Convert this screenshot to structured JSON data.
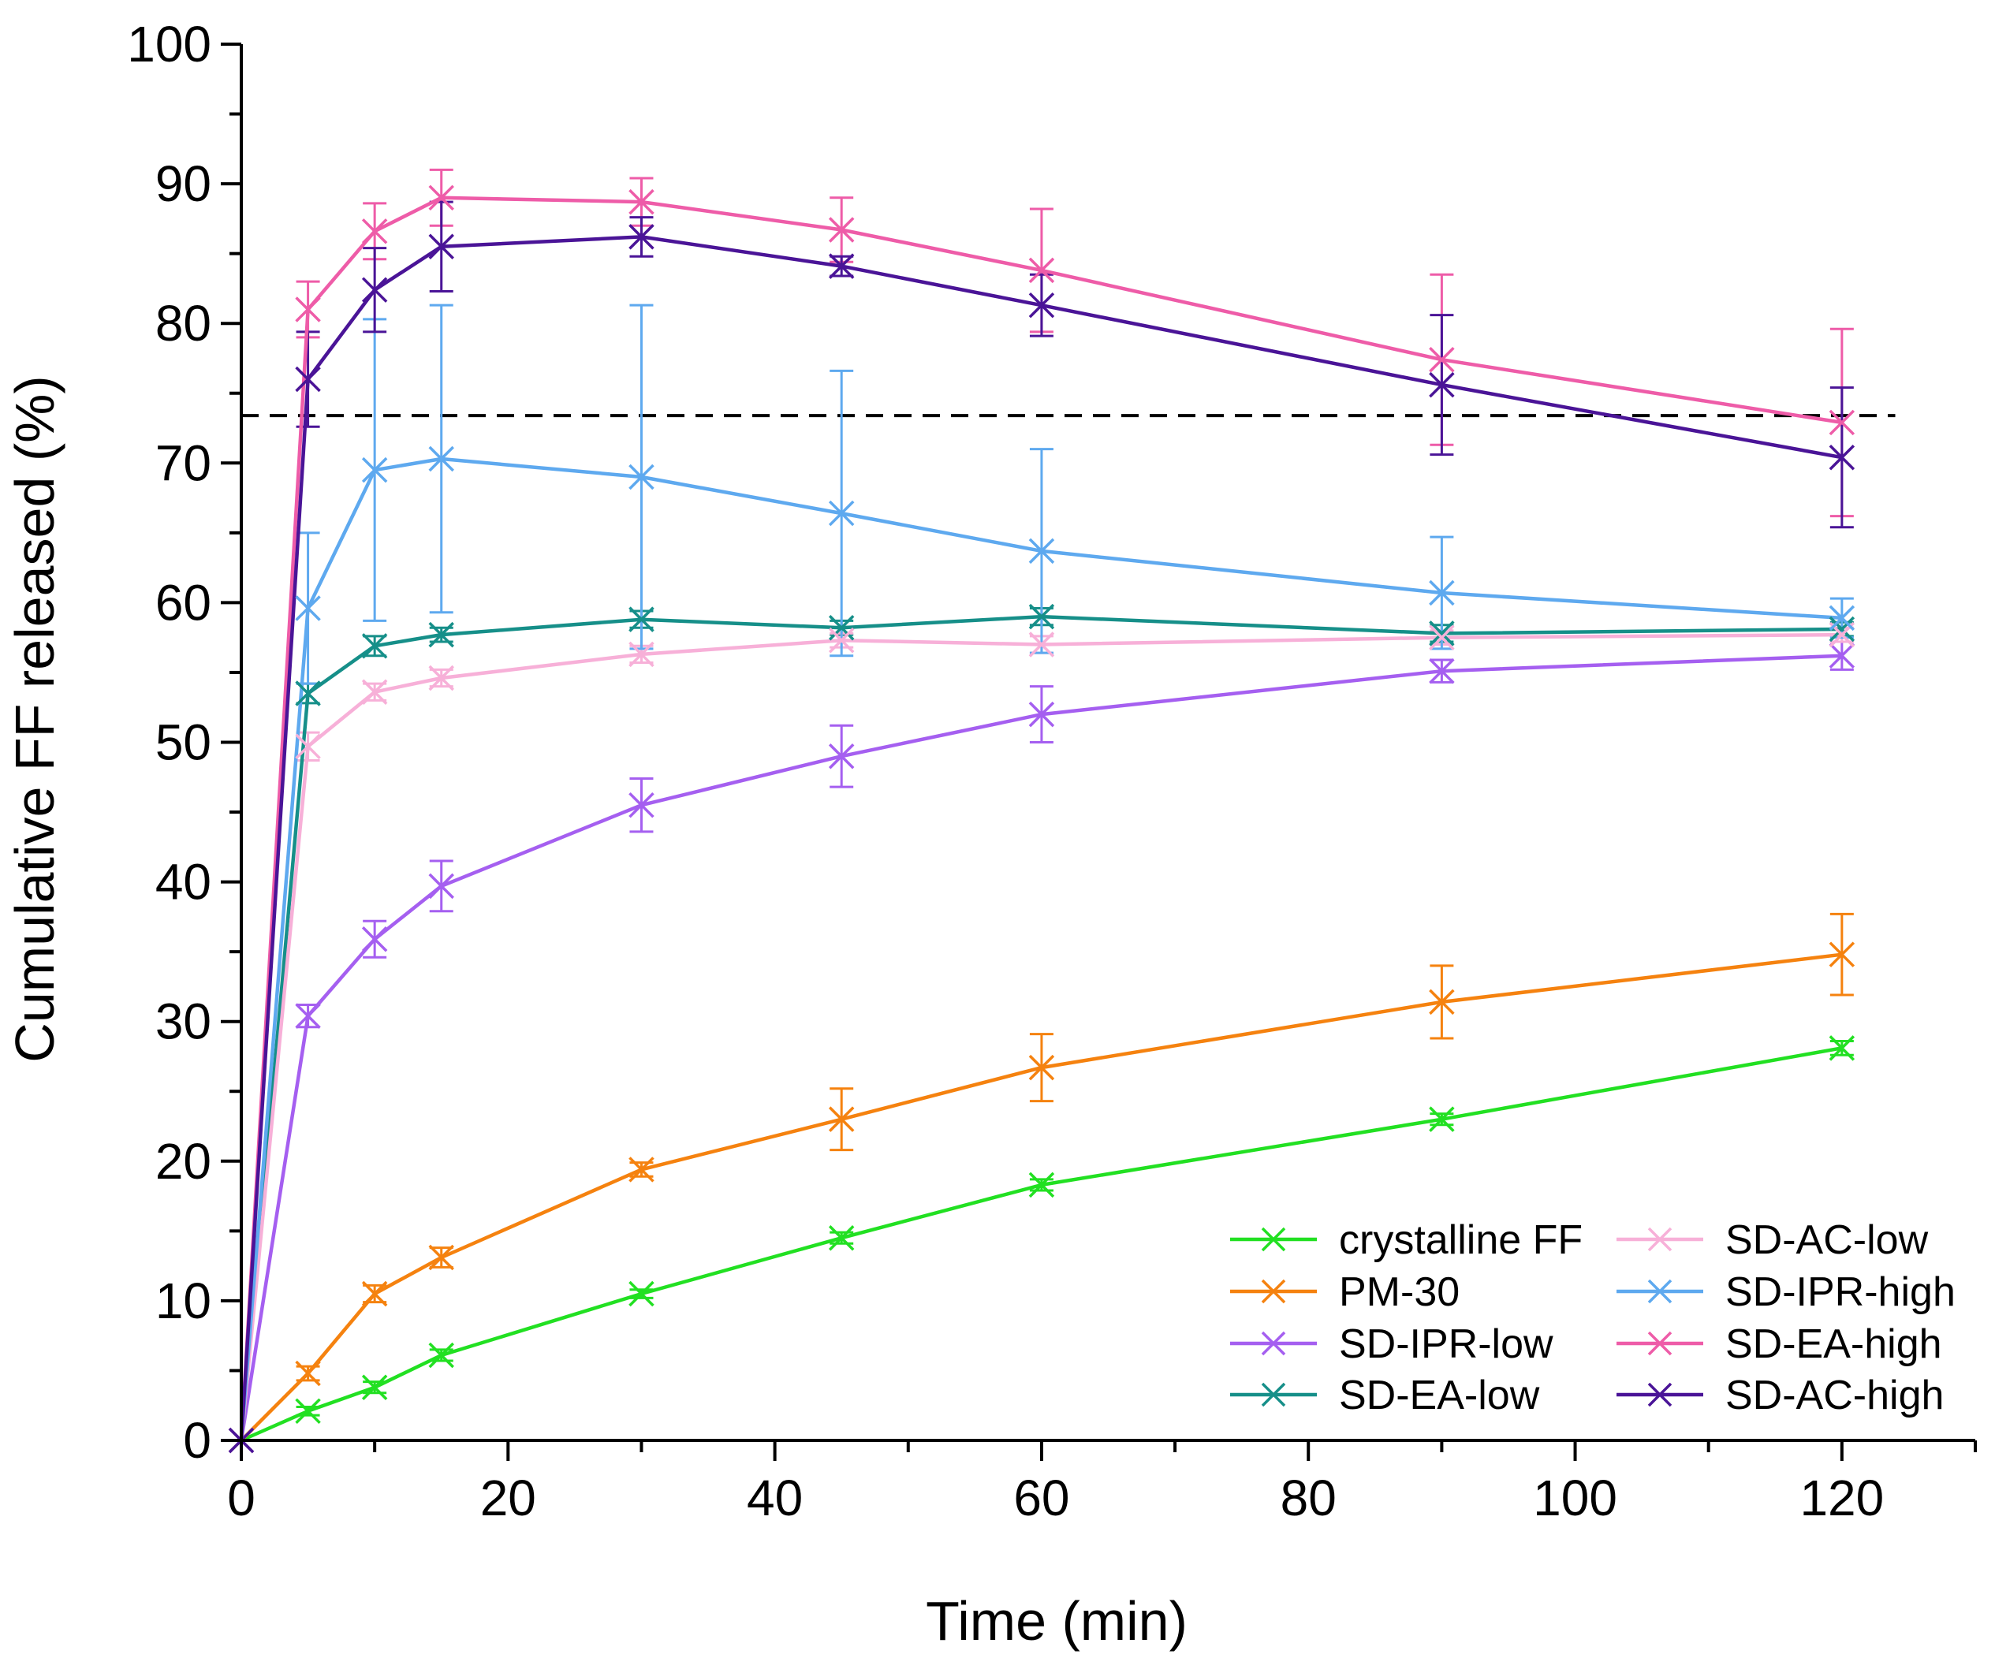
{
  "chart_data": {
    "type": "line",
    "title": "",
    "xlabel": "Time (min)",
    "ylabel": "Cumulative FF released (%)",
    "xlim": [
      0,
      130
    ],
    "ylim": [
      0,
      100
    ],
    "x_ticks": [
      0,
      20,
      40,
      60,
      80,
      100,
      120
    ],
    "y_ticks": [
      0,
      10,
      20,
      30,
      40,
      50,
      60,
      70,
      80,
      90,
      100
    ],
    "grid": false,
    "legend_position": "bottom-right",
    "reference_line": {
      "y": 73.4,
      "style": "dashed",
      "color": "#000000"
    },
    "x": [
      0,
      5,
      10,
      15,
      30,
      45,
      60,
      90,
      120
    ],
    "series": [
      {
        "name": "crystalline FF",
        "color": "#22e022",
        "values": [
          0,
          2.1,
          3.8,
          6.1,
          10.5,
          14.5,
          18.3,
          23.0,
          28.1
        ],
        "errors": [
          0,
          0.3,
          0.4,
          0.4,
          0.3,
          0.4,
          0.4,
          0.4,
          0.5
        ]
      },
      {
        "name": "PM-30",
        "color": "#f5820f",
        "values": [
          0,
          4.8,
          10.5,
          13.1,
          19.4,
          23.0,
          26.7,
          31.4,
          34.8
        ],
        "errors": [
          0,
          0.5,
          0.6,
          0.7,
          0.5,
          2.2,
          2.4,
          2.6,
          2.9
        ]
      },
      {
        "name": "SD-IPR-low",
        "color": "#a55ff0",
        "values": [
          0,
          30.4,
          35.9,
          39.7,
          45.5,
          49.0,
          52.0,
          55.1,
          56.2
        ],
        "errors": [
          0,
          0.8,
          1.3,
          1.8,
          1.9,
          2.2,
          2.0,
          0.8,
          1.0
        ]
      },
      {
        "name": "SD-EA-low",
        "color": "#168f89",
        "values": [
          0,
          53.5,
          56.9,
          57.7,
          58.8,
          58.2,
          59.0,
          57.8,
          58.1
        ],
        "errors": [
          0,
          0.7,
          0.7,
          0.5,
          0.6,
          0.5,
          0.6,
          0.6,
          0.5
        ]
      },
      {
        "name": "SD-AC-low",
        "color": "#f7b0d8",
        "values": [
          0,
          49.7,
          53.6,
          54.6,
          56.3,
          57.3,
          57.0,
          57.5,
          57.7
        ],
        "errors": [
          0,
          1.0,
          0.6,
          0.6,
          0.6,
          0.5,
          0.6,
          0.5,
          0.5
        ]
      },
      {
        "name": "SD-IPR-high",
        "color": "#5ea9ef",
        "values": [
          0,
          59.6,
          69.5,
          70.3,
          69.0,
          66.4,
          63.7,
          60.7,
          58.9
        ],
        "errors": [
          0,
          5.4,
          10.8,
          11.0,
          12.3,
          10.2,
          7.3,
          4.0,
          1.4
        ]
      },
      {
        "name": "SD-EA-high",
        "color": "#ee5ca8",
        "values": [
          0,
          81.0,
          86.6,
          89.0,
          88.7,
          86.7,
          83.8,
          77.4,
          72.9
        ],
        "errors": [
          0,
          2.0,
          2.0,
          2.0,
          1.7,
          2.3,
          4.4,
          6.1,
          6.7
        ]
      },
      {
        "name": "SD-AC-high",
        "color": "#4a1497",
        "values": [
          0,
          76.0,
          82.4,
          85.5,
          86.2,
          84.1,
          81.3,
          75.6,
          70.4
        ],
        "errors": [
          0,
          3.4,
          3.0,
          3.2,
          1.4,
          0.7,
          2.2,
          5.0,
          5.0
        ]
      }
    ]
  }
}
